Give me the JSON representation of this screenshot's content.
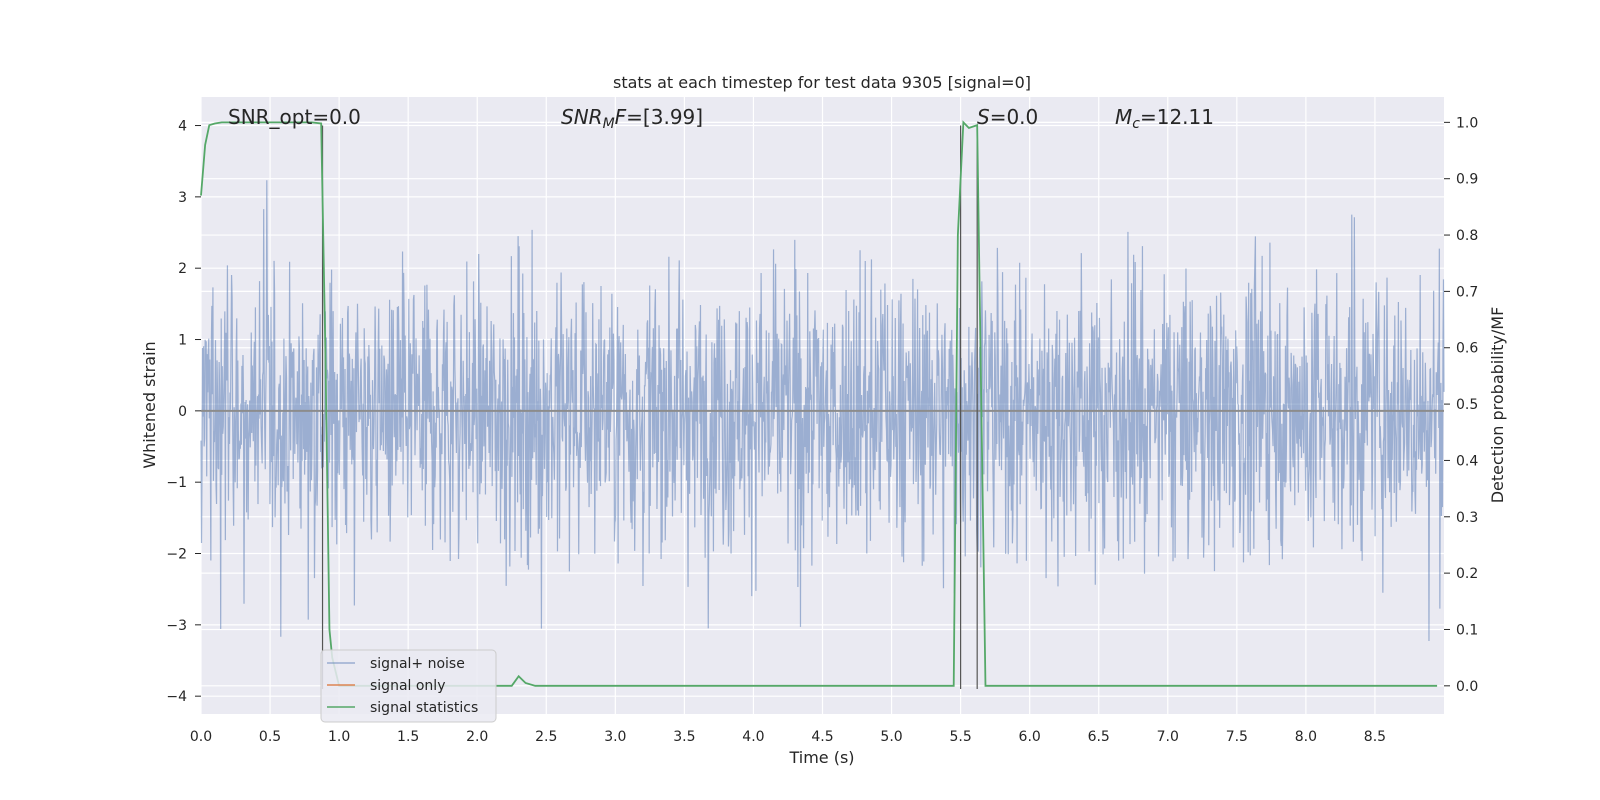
{
  "chart_data": {
    "type": "line",
    "title": "stats at each timestep for test data 9305 [signal=0]",
    "xlabel": "Time (s)",
    "ylabel_left": "Whitened strain",
    "ylabel_right": "Detection probability/MF",
    "xlim": [
      0.0,
      9.0
    ],
    "ylim_left": [
      -4.25,
      4.4
    ],
    "ylim_right": [
      -0.05,
      1.045
    ],
    "x_ticks": [
      "0.0",
      "0.5",
      "1.0",
      "1.5",
      "2.0",
      "2.5",
      "3.0",
      "3.5",
      "4.0",
      "4.5",
      "5.0",
      "5.5",
      "6.0",
      "6.5",
      "7.0",
      "7.5",
      "8.0",
      "8.5"
    ],
    "y_left_ticks": [
      "4",
      "3",
      "2",
      "1",
      "0",
      "−1",
      "−2",
      "−3",
      "−4"
    ],
    "y_right_ticks": [
      "1.0",
      "0.9",
      "0.8",
      "0.7",
      "0.6",
      "0.5",
      "0.4",
      "0.3",
      "0.2",
      "0.1",
      "0.0"
    ],
    "grid": true,
    "legend_position": "lower-left",
    "annotations": {
      "snr_opt": "SNR_opt=0.0",
      "snr_mf_italic": "SNR",
      "snr_mf_sub": "M",
      "snr_mf_italic2": "F",
      "snr_mf_rest": "=[3.99]",
      "s_italic": "S",
      "s_rest": "=0.0",
      "mc_italic": "M",
      "mc_sub": "c",
      "mc_rest": "=12.11"
    },
    "series": [
      {
        "name": "signal+ noise",
        "color": "#4c72b0",
        "description_values": "whitened strain noise, approximately within [-4, 4]"
      },
      {
        "name": "signal only",
        "color": "#dd8452",
        "x": [
          0.0,
          9.0
        ],
        "y": [
          0.0,
          0.0
        ]
      },
      {
        "name": "signal statistics",
        "color": "#55a868",
        "x": [
          0.0,
          0.03,
          0.06,
          0.1,
          0.15,
          0.3,
          0.5,
          0.7,
          0.8,
          0.87,
          0.9,
          0.93,
          0.95,
          1.0,
          1.2,
          1.5,
          2.0,
          2.25,
          2.3,
          2.35,
          2.42,
          2.5,
          3.0,
          4.0,
          5.0,
          5.45,
          5.48,
          5.52,
          5.56,
          5.62,
          5.68,
          6.0,
          7.0,
          8.0,
          8.95
        ],
        "y": [
          0.87,
          0.96,
          0.995,
          0.998,
          1.0,
          1.0,
          1.0,
          1.0,
          1.0,
          0.998,
          0.6,
          0.1,
          0.05,
          0.0,
          0.0,
          0.0,
          0.0,
          0.0,
          0.017,
          0.005,
          0.0,
          0.0,
          0.0,
          0.0,
          0.0,
          0.0,
          0.8,
          1.0,
          0.99,
          0.995,
          0.0,
          0.0,
          0.0,
          0.0,
          0.0
        ]
      }
    ],
    "vertical_markers": [
      {
        "x": 0.88
      },
      {
        "x": 5.5
      },
      {
        "x": 5.62
      }
    ]
  }
}
